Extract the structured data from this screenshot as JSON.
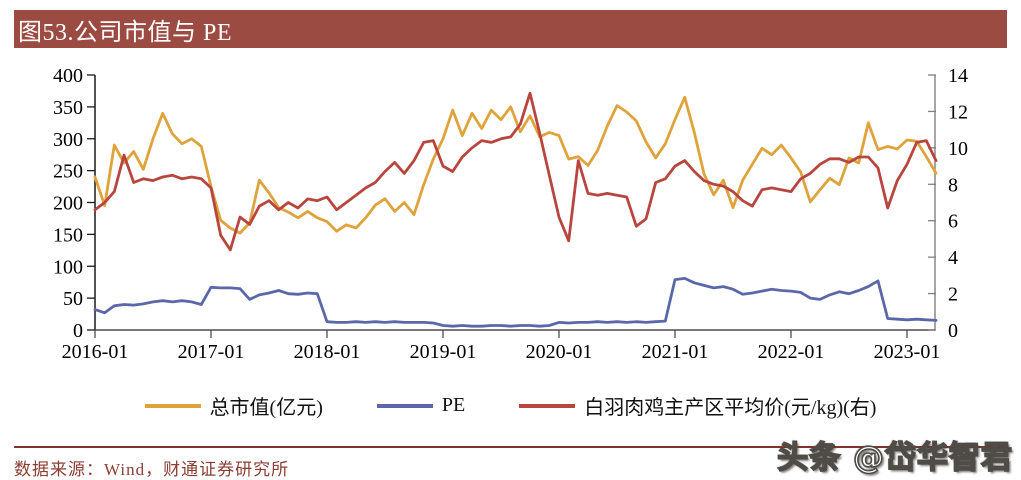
{
  "title": {
    "text": "图53.公司市值与 PE"
  },
  "chart_data": {
    "type": "line",
    "x": {
      "tick_labels": [
        "2016-01",
        "2017-01",
        "2018-01",
        "2019-01",
        "2020-01",
        "2021-01",
        "2022-01",
        "2023-01"
      ],
      "months_per_tick": 12,
      "total_months": 88
    },
    "left_axis": {
      "range": [
        0,
        400
      ],
      "ticks": [
        0,
        50,
        100,
        150,
        200,
        250,
        300,
        350,
        400
      ]
    },
    "right_axis": {
      "range": [
        0,
        14
      ],
      "ticks": [
        0,
        2,
        4,
        6,
        8,
        10,
        12,
        14
      ]
    },
    "grid": "off",
    "legend_position": "bottom",
    "series": [
      {
        "id": "market-cap",
        "name": "总市值(亿元)",
        "axis": "left",
        "color": "#DFA33C",
        "values": [
          240,
          195,
          290,
          262,
          280,
          252,
          300,
          340,
          308,
          292,
          300,
          288,
          225,
          172,
          160,
          152,
          168,
          235,
          215,
          192,
          185,
          176,
          186,
          176,
          170,
          155,
          165,
          160,
          176,
          196,
          206,
          186,
          200,
          181,
          228,
          268,
          300,
          345,
          305,
          340,
          316,
          345,
          330,
          350,
          311,
          336,
          303,
          310,
          305,
          268,
          272,
          258,
          282,
          320,
          352,
          342,
          328,
          295,
          270,
          292,
          330,
          365,
          310,
          245,
          212,
          235,
          192,
          235,
          260,
          285,
          275,
          290,
          270,
          248,
          201,
          220,
          238,
          228,
          270,
          262,
          325,
          283,
          288,
          284,
          298,
          296,
          272,
          246
        ]
      },
      {
        "id": "pe",
        "name": "PE",
        "axis": "left",
        "color": "#5A68A9",
        "values": [
          32,
          27,
          38,
          40,
          39,
          41,
          44,
          46,
          44,
          46,
          44,
          40,
          67,
          66,
          66,
          65,
          48,
          55,
          58,
          62,
          57,
          56,
          58,
          57,
          13,
          12,
          12,
          13,
          12,
          13,
          12,
          13,
          12,
          12,
          12,
          11,
          7,
          6,
          7,
          6,
          6,
          7,
          7,
          6,
          7,
          7,
          6,
          7,
          12,
          11,
          12,
          12,
          13,
          12,
          13,
          12,
          13,
          12,
          13,
          14,
          79,
          81,
          74,
          70,
          66,
          68,
          64,
          56,
          58,
          61,
          64,
          62,
          61,
          59,
          50,
          48,
          55,
          60,
          57,
          62,
          68,
          77,
          18,
          17,
          16,
          17,
          16,
          15
        ]
      },
      {
        "id": "broiler-price",
        "name": "白羽肉鸡主产区平均价(元/kg)(右)",
        "axis": "right",
        "color": "#B8453E",
        "values": [
          6.6,
          7.0,
          7.6,
          9.6,
          8.1,
          8.3,
          8.2,
          8.4,
          8.5,
          8.3,
          8.4,
          8.3,
          7.8,
          5.2,
          4.4,
          6.2,
          5.8,
          6.8,
          7.1,
          6.6,
          7.0,
          6.7,
          7.2,
          7.1,
          7.3,
          6.6,
          7.0,
          7.4,
          7.8,
          8.1,
          8.7,
          9.2,
          8.6,
          9.3,
          10.3,
          10.4,
          9.0,
          8.7,
          9.5,
          10.0,
          10.4,
          10.3,
          10.5,
          10.6,
          11.3,
          13.0,
          10.8,
          8.5,
          6.2,
          4.9,
          9.3,
          7.5,
          7.4,
          7.5,
          7.4,
          7.3,
          5.7,
          6.1,
          8.1,
          8.3,
          9.0,
          9.3,
          8.7,
          8.2,
          8.0,
          7.9,
          7.6,
          7.1,
          6.8,
          7.7,
          7.8,
          7.7,
          7.6,
          8.3,
          8.6,
          9.1,
          9.4,
          9.4,
          9.2,
          9.5,
          9.5,
          8.9,
          6.7,
          8.2,
          9.1,
          10.3,
          10.4,
          9.3
        ]
      }
    ]
  },
  "footer": {
    "source": "数据来源：Wind，财通证券研究所"
  },
  "watermark": {
    "text": "头条 @岱华智君"
  }
}
